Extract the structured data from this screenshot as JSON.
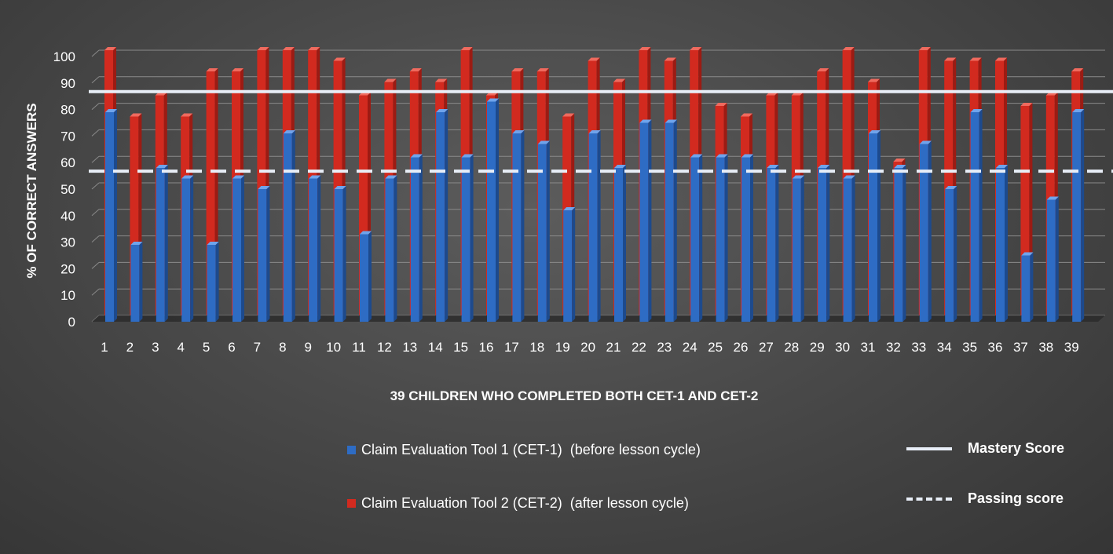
{
  "chart_data": {
    "type": "bar",
    "categories": [
      "1",
      "2",
      "3",
      "4",
      "5",
      "6",
      "7",
      "8",
      "9",
      "10",
      "11",
      "12",
      "13",
      "14",
      "15",
      "16",
      "17",
      "18",
      "19",
      "20",
      "21",
      "22",
      "23",
      "24",
      "25",
      "26",
      "27",
      "28",
      "29",
      "30",
      "31",
      "32",
      "33",
      "34",
      "35",
      "36",
      "37",
      "38",
      "39"
    ],
    "series": [
      {
        "name": "Claim Evaluation Tool 1 (CET-1)",
        "note": "(before lesson cycle)",
        "color": "#2e6cc4",
        "values": [
          79,
          29,
          58,
          54,
          29,
          54,
          50,
          71,
          54,
          50,
          33,
          54,
          62,
          79,
          62,
          83,
          71,
          67,
          42,
          71,
          58,
          75,
          75,
          62,
          62,
          62,
          58,
          54,
          58,
          54,
          71,
          58,
          67,
          50,
          79,
          58,
          25,
          46,
          79
        ]
      },
      {
        "name": "Claim Evaluation Tool 2 (CET-2)",
        "note": "(after lesson cycle)",
        "color": "#d22a1f",
        "values": [
          100,
          75,
          83,
          75,
          92,
          92,
          100,
          100,
          100,
          96,
          83,
          88,
          92,
          88,
          100,
          83,
          92,
          92,
          75,
          96,
          88,
          100,
          96,
          100,
          79,
          75,
          83,
          83,
          92,
          100,
          88,
          58,
          100,
          96,
          96,
          96,
          79,
          83,
          92
        ]
      }
    ],
    "reference_lines": [
      {
        "name": "Mastery Score",
        "value": 85,
        "style": "solid",
        "color": "#e8eef7"
      },
      {
        "name": "Passing score",
        "value": 55,
        "style": "dashed",
        "color": "#e8eef7"
      }
    ],
    "y_ticks": [
      "0",
      "10",
      "20",
      "30",
      "40",
      "50",
      "60",
      "70",
      "80",
      "90",
      "100"
    ],
    "ylim": [
      0,
      100
    ],
    "ylabel": "% OF CORRECT ANSWERS",
    "xlabel": "39 CHILDREN  WHO COMPLETED BOTH  CET-1 AND CET-2",
    "grid": true,
    "legend_position": "bottom"
  }
}
